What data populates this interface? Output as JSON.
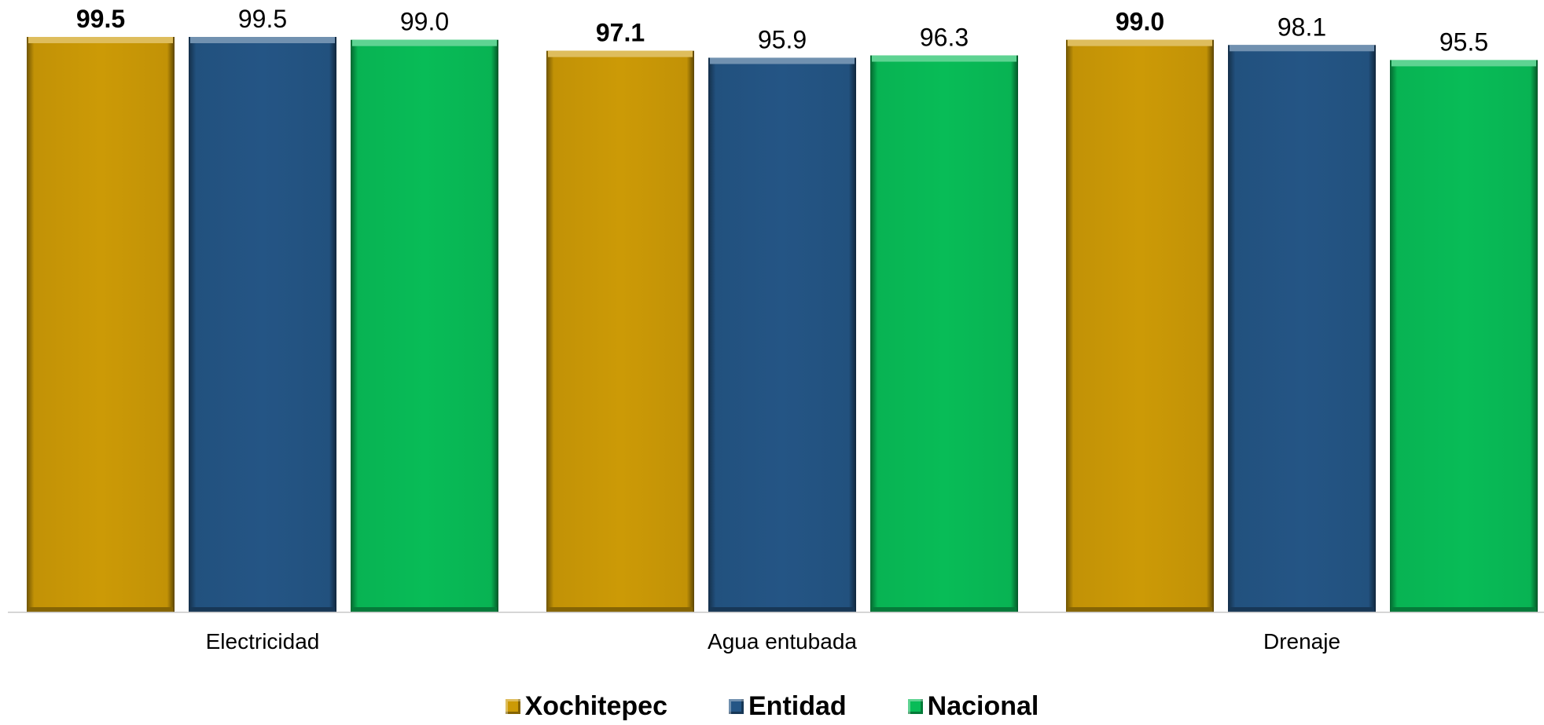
{
  "chart_data": {
    "type": "bar",
    "title": "",
    "xlabel": "",
    "ylabel": "",
    "categories": [
      "Electricidad",
      "Agua entubada",
      "Drenaje"
    ],
    "series": [
      {
        "name": "Xochitepec",
        "values": [
          99.5,
          97.1,
          99.0
        ],
        "labels": [
          "99.5",
          "97.1",
          "99.0"
        ],
        "color": "#CC9A06",
        "label_bold": true
      },
      {
        "name": "Entidad",
        "values": [
          99.5,
          95.9,
          98.1
        ],
        "labels": [
          "99.5",
          "95.9",
          "98.1"
        ],
        "color": "#245585",
        "label_bold": false
      },
      {
        "name": "Nacional",
        "values": [
          99.0,
          96.3,
          95.5
        ],
        "labels": [
          "99.0",
          "96.3",
          "95.5"
        ],
        "color": "#08BC57",
        "label_bold": false
      }
    ],
    "ylim": [
      0,
      99.5
    ],
    "grid": false,
    "legend_position": "bottom-center",
    "baseline_color": "#C8C8C8"
  }
}
